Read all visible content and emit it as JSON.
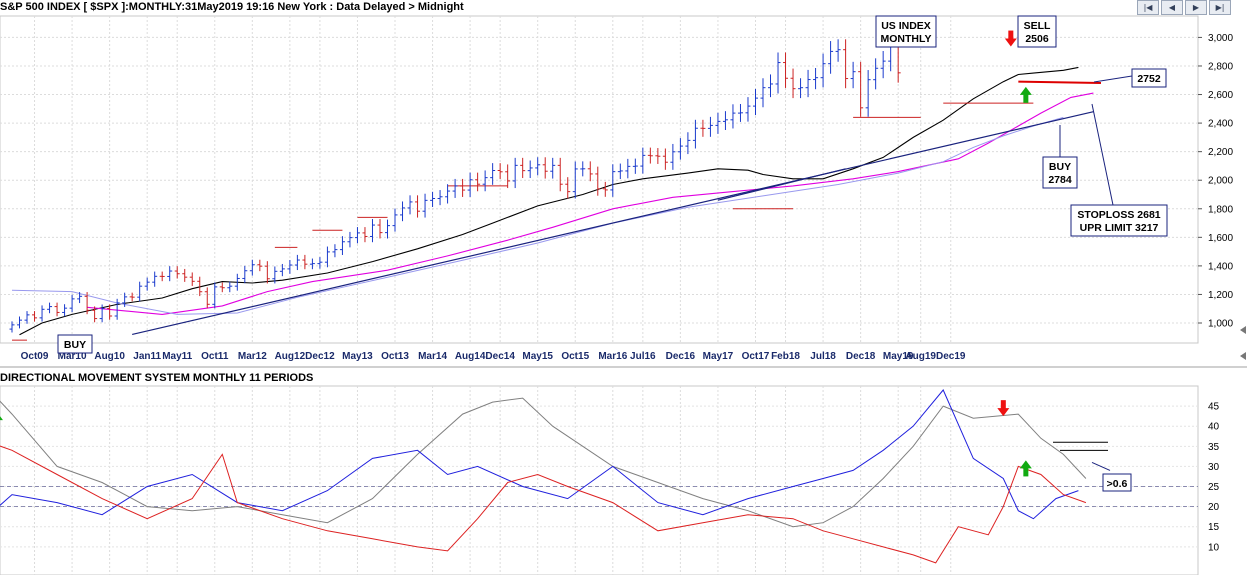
{
  "header": {
    "title": "S&P 500 INDEX [ $SPX ]:MONTHLY:31May2019 19:16 New York : Data Delayed > Midnight",
    "nav": [
      {
        "icon": "first-page-icon",
        "glyph": "|◀"
      },
      {
        "icon": "previous-icon",
        "glyph": "◀"
      },
      {
        "icon": "next-icon",
        "glyph": "▶"
      },
      {
        "icon": "last-page-icon",
        "glyph": "▶|"
      }
    ]
  },
  "chart_data": [
    {
      "type": "line",
      "title": "S&P 500 INDEX [ $SPX ]:MONTHLY:31May2019 19:16 New York : Data Delayed > Midnight",
      "x_ticks": [
        "Oct09",
        "Mar10",
        "Aug10",
        "Jan11",
        "May11",
        "Oct11",
        "Mar12",
        "Aug12",
        "Dec12",
        "May13",
        "Oct13",
        "Mar14",
        "Aug14",
        "Dec14",
        "May15",
        "Oct15",
        "Mar16",
        "Jul16",
        "Dec16",
        "May17",
        "Oct17",
        "Feb18",
        "Jul18",
        "Dec18",
        "May19",
        "Aug19",
        "Dec19"
      ],
      "y_ticks": [
        1000,
        1200,
        1400,
        1600,
        1800,
        2000,
        2200,
        2400,
        2600,
        2800,
        3000
      ],
      "ylim": [
        860,
        3150
      ],
      "grid": true,
      "price_bars": {
        "start": "Jul09",
        "close": [
          987,
          1020,
          1057,
          1036,
          1096,
          1115,
          1074,
          1104,
          1169,
          1187,
          1089,
          1031,
          1102,
          1049,
          1141,
          1183,
          1181,
          1258,
          1286,
          1327,
          1326,
          1364,
          1345,
          1321,
          1292,
          1219,
          1131,
          1253,
          1247,
          1258,
          1312,
          1366,
          1408,
          1398,
          1310,
          1362,
          1379,
          1406,
          1441,
          1412,
          1416,
          1426,
          1498,
          1514,
          1569,
          1598,
          1631,
          1606,
          1686,
          1633,
          1682,
          1757,
          1806,
          1848,
          1783,
          1859,
          1872,
          1884,
          1924,
          1960,
          1931,
          2003,
          1972,
          2018,
          2068,
          2059,
          1995,
          2104,
          2067,
          2086,
          2108,
          2063,
          2104,
          1972,
          1920,
          2079,
          2080,
          2044,
          1940,
          1932,
          2060,
          2065,
          2097,
          2099,
          2174,
          2171,
          2168,
          2126,
          2199,
          2239,
          2279,
          2364,
          2363,
          2384,
          2412,
          2423,
          2470,
          2472,
          2519,
          2575,
          2648,
          2674,
          2824,
          2714,
          2641,
          2648,
          2705,
          2718,
          2816,
          2902,
          2914,
          2712,
          2760,
          2507,
          2704,
          2784,
          2834,
          2946,
          2752
        ],
        "rising_color": "#1a3acc",
        "falling_color": "#cc2222"
      },
      "series": [
        {
          "name": "",
          "color": "#000000",
          "values": [
            [
              1,
              918
            ],
            [
              4,
              1000
            ],
            [
              8,
              1060
            ],
            [
              14,
              1130
            ],
            [
              20,
              1175
            ],
            [
              24,
              1240
            ],
            [
              28,
              1290
            ],
            [
              32,
              1280
            ],
            [
              36,
              1300
            ],
            [
              42,
              1350
            ],
            [
              48,
              1430
            ],
            [
              54,
              1520
            ],
            [
              60,
              1620
            ],
            [
              64,
              1700
            ],
            [
              70,
              1820
            ],
            [
              76,
              1900
            ],
            [
              80,
              1970
            ],
            [
              84,
              2010
            ],
            [
              90,
              2050
            ],
            [
              94,
              2080
            ],
            [
              98,
              2070
            ],
            [
              100,
              2040
            ],
            [
              104,
              2010
            ],
            [
              108,
              2010
            ],
            [
              112,
              2080
            ],
            [
              116,
              2160
            ],
            [
              120,
              2300
            ],
            [
              124,
              2420
            ],
            [
              128,
              2570
            ],
            [
              132,
              2690
            ],
            [
              134,
              2740
            ],
            [
              136,
              2750
            ],
            [
              140,
              2770
            ],
            [
              142,
              2790
            ]
          ]
        },
        {
          "name": "",
          "color": "#e000e0",
          "values": [
            [
              10,
              1110
            ],
            [
              20,
              1060
            ],
            [
              28,
              1120
            ],
            [
              34,
              1220
            ],
            [
              40,
              1290
            ],
            [
              50,
              1370
            ],
            [
              58,
              1470
            ],
            [
              66,
              1580
            ],
            [
              72,
              1670
            ],
            [
              80,
              1800
            ],
            [
              88,
              1880
            ],
            [
              96,
              1920
            ],
            [
              104,
              1960
            ],
            [
              112,
              2010
            ],
            [
              118,
              2060
            ],
            [
              126,
              2150
            ],
            [
              130,
              2260
            ],
            [
              134,
              2380
            ],
            [
              137,
              2470
            ],
            [
              141,
              2580
            ],
            [
              144,
              2610
            ]
          ]
        },
        {
          "name": "",
          "color": "#9999ee",
          "values": [
            [
              0,
              1230
            ],
            [
              8,
              1220
            ],
            [
              14,
              1140
            ],
            [
              22,
              1060
            ],
            [
              30,
              1070
            ],
            [
              38,
              1180
            ],
            [
              50,
              1320
            ],
            [
              60,
              1440
            ],
            [
              70,
              1560
            ],
            [
              80,
              1700
            ],
            [
              90,
              1810
            ],
            [
              100,
              1890
            ],
            [
              110,
              1970
            ],
            [
              118,
              2050
            ],
            [
              124,
              2130
            ],
            [
              128,
              2230
            ],
            [
              132,
              2310
            ],
            [
              136,
              2380
            ],
            [
              140,
              2440
            ]
          ]
        }
      ],
      "trendlines": [
        {
          "kind": "support",
          "from": [
            16,
            920
          ],
          "to": [
            144,
            2480
          ],
          "color": "#1a237e"
        },
        {
          "kind": "support",
          "from": [
            94,
            1860
          ],
          "to": [
            111,
            2080
          ],
          "color": "#1a237e"
        },
        {
          "kind": "stop",
          "from": [
            134,
            2690
          ],
          "to": [
            145,
            2681
          ],
          "color": "#dd0000"
        }
      ],
      "red_markers": [
        {
          "from": [
            35,
            1530
          ],
          "to": [
            38,
            1530
          ],
          "color": "#cc2222"
        },
        {
          "from": [
            40,
            1650
          ],
          "to": [
            44,
            1650
          ],
          "color": "#cc2222"
        },
        {
          "from": [
            46,
            1740
          ],
          "to": [
            50,
            1740
          ],
          "color": "#cc2222"
        },
        {
          "from": [
            58,
            1960
          ],
          "to": [
            66,
            1960
          ],
          "color": "#cc2222"
        },
        {
          "from": [
            96,
            1800
          ],
          "to": [
            104,
            1800
          ],
          "color": "#cc2222"
        },
        {
          "from": [
            112,
            2440
          ],
          "to": [
            121,
            2440
          ],
          "color": "#cc2222"
        },
        {
          "from": [
            124,
            2540
          ],
          "to": [
            136,
            2540
          ],
          "color": "#cc2222"
        },
        {
          "from": [
            0,
            880
          ],
          "to": [
            2,
            880
          ],
          "color": "#cc2222"
        }
      ],
      "annotations": [
        {
          "text": [
            "US INDEX",
            "MONTHLY"
          ]
        },
        {
          "text": [
            "SELL",
            "2506"
          ]
        },
        {
          "text": [
            "2752"
          ]
        },
        {
          "text": [
            "BUY",
            "2784"
          ]
        },
        {
          "text": [
            "STOPLOSS 2681",
            "UPR LIMIT 3217"
          ]
        },
        {
          "text": [
            "BUY"
          ]
        }
      ],
      "signals": [
        {
          "type": "sell",
          "at": [
            133,
            2950
          ],
          "color": "#ee1111"
        },
        {
          "type": "buy",
          "at": [
            135,
            2640
          ],
          "color": "#11aa11"
        },
        {
          "type": "buy",
          "at": [
            -3,
            880
          ],
          "color": "#11aa11"
        }
      ]
    },
    {
      "type": "line",
      "title": "DIRECTIONAL MOVEMENT SYSTEM MONTHLY 11 PERIODS",
      "y_ticks": [
        10,
        15,
        20,
        25,
        30,
        35,
        40,
        45
      ],
      "ylim": [
        3,
        50
      ],
      "reference_lines": [
        20,
        25
      ],
      "grid": true,
      "series": [
        {
          "name": "",
          "color": "#808080",
          "values": [
            [
              -3,
              49
            ],
            [
              0,
              43
            ],
            [
              6,
              30
            ],
            [
              12,
              26
            ],
            [
              18,
              20
            ],
            [
              24,
              19
            ],
            [
              30,
              20
            ],
            [
              36,
              18
            ],
            [
              42,
              16
            ],
            [
              48,
              22
            ],
            [
              54,
              33
            ],
            [
              60,
              43
            ],
            [
              64,
              46
            ],
            [
              68,
              47
            ],
            [
              72,
              40
            ],
            [
              80,
              30
            ],
            [
              86,
              26
            ],
            [
              92,
              22
            ],
            [
              98,
              19
            ],
            [
              104,
              15
            ],
            [
              108,
              16
            ],
            [
              112,
              20
            ],
            [
              116,
              27
            ],
            [
              120,
              35
            ],
            [
              124,
              45
            ],
            [
              128,
              42
            ],
            [
              134,
              43
            ],
            [
              137,
              37
            ],
            [
              140,
              33
            ],
            [
              143,
              27
            ]
          ]
        },
        {
          "name": "",
          "color": "#2020dd",
          "values": [
            [
              -3,
              18
            ],
            [
              0,
              23
            ],
            [
              6,
              21
            ],
            [
              12,
              18
            ],
            [
              18,
              25
            ],
            [
              24,
              28
            ],
            [
              30,
              21
            ],
            [
              36,
              19
            ],
            [
              42,
              24
            ],
            [
              48,
              32
            ],
            [
              54,
              34
            ],
            [
              58,
              28
            ],
            [
              62,
              30
            ],
            [
              68,
              25
            ],
            [
              74,
              22
            ],
            [
              80,
              30
            ],
            [
              86,
              21
            ],
            [
              92,
              18
            ],
            [
              98,
              22
            ],
            [
              104,
              25
            ],
            [
              108,
              27
            ],
            [
              112,
              29
            ],
            [
              116,
              34
            ],
            [
              120,
              40
            ],
            [
              124,
              49
            ],
            [
              128,
              32
            ],
            [
              132,
              27
            ],
            [
              134,
              19
            ],
            [
              136,
              17
            ],
            [
              139,
              22
            ],
            [
              142,
              24
            ]
          ]
        },
        {
          "name": "",
          "color": "#dd2222",
          "values": [
            [
              -3,
              36
            ],
            [
              0,
              34
            ],
            [
              6,
              28
            ],
            [
              12,
              22
            ],
            [
              18,
              17
            ],
            [
              24,
              22
            ],
            [
              28,
              33
            ],
            [
              30,
              21
            ],
            [
              36,
              17
            ],
            [
              42,
              14
            ],
            [
              48,
              12
            ],
            [
              54,
              10
            ],
            [
              58,
              9
            ],
            [
              62,
              17
            ],
            [
              66,
              26
            ],
            [
              70,
              28
            ],
            [
              74,
              25
            ],
            [
              80,
              21
            ],
            [
              86,
              14
            ],
            [
              92,
              16
            ],
            [
              98,
              18
            ],
            [
              104,
              17
            ],
            [
              108,
              14
            ],
            [
              112,
              12
            ],
            [
              116,
              10
            ],
            [
              120,
              8
            ],
            [
              123,
              6
            ],
            [
              126,
              15
            ],
            [
              130,
              13
            ],
            [
              132,
              20
            ],
            [
              134,
              30
            ],
            [
              137,
              28
            ],
            [
              140,
              23
            ],
            [
              143,
              21
            ]
          ]
        }
      ],
      "annotations": [
        {
          "text": ">0.6"
        }
      ],
      "signals": [
        {
          "type": "buy",
          "at": [
            -2,
            43
          ],
          "color": "#11aa11"
        },
        {
          "type": "sell",
          "at": [
            132,
            43
          ],
          "color": "#ee1111"
        },
        {
          "type": "buy",
          "at": [
            135,
            31
          ],
          "color": "#11aa11"
        }
      ]
    }
  ]
}
